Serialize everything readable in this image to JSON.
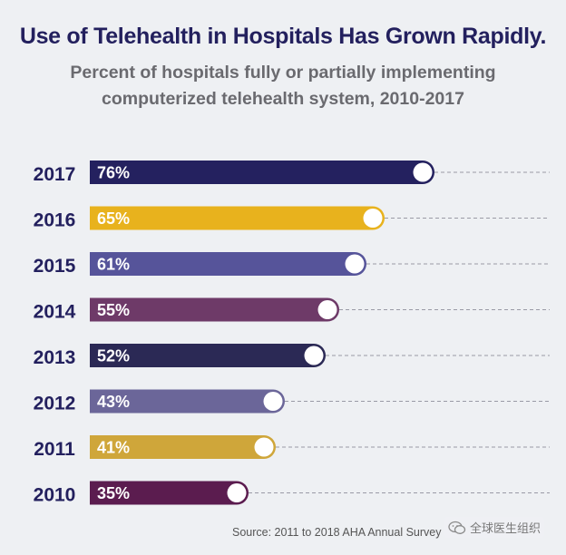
{
  "colors": {
    "title": "#23205e",
    "subtitle": "#6a6a6f",
    "dash": "#9a9aa6",
    "bars": [
      "#24215f",
      "#e8b21d",
      "#56549a",
      "#6e3a68",
      "#2b2955",
      "#6b6699",
      "#cfa63a",
      "#5b1c4f"
    ]
  },
  "chart_data": {
    "type": "bar",
    "orientation": "horizontal",
    "title": "Use of Telehealth in Hospitals Has Grown Rapidly.",
    "subtitle": "Percent of hospitals fully or partially implementing computerized telehealth system, 2010-2017",
    "categories": [
      "2017",
      "2016",
      "2015",
      "2014",
      "2013",
      "2012",
      "2011",
      "2010"
    ],
    "values": [
      76,
      65,
      61,
      55,
      52,
      43,
      41,
      35
    ],
    "value_labels": [
      "76%",
      "65%",
      "61%",
      "55%",
      "52%",
      "43%",
      "41%",
      "35%"
    ],
    "xlim": [
      0,
      100
    ],
    "grid": false,
    "legend": "none"
  },
  "footer": {
    "source": "Source: 2011 to 2018 AHA Annual Survey",
    "watermark": "全球医生组织",
    "watermark_icon": "wechat-icon"
  }
}
